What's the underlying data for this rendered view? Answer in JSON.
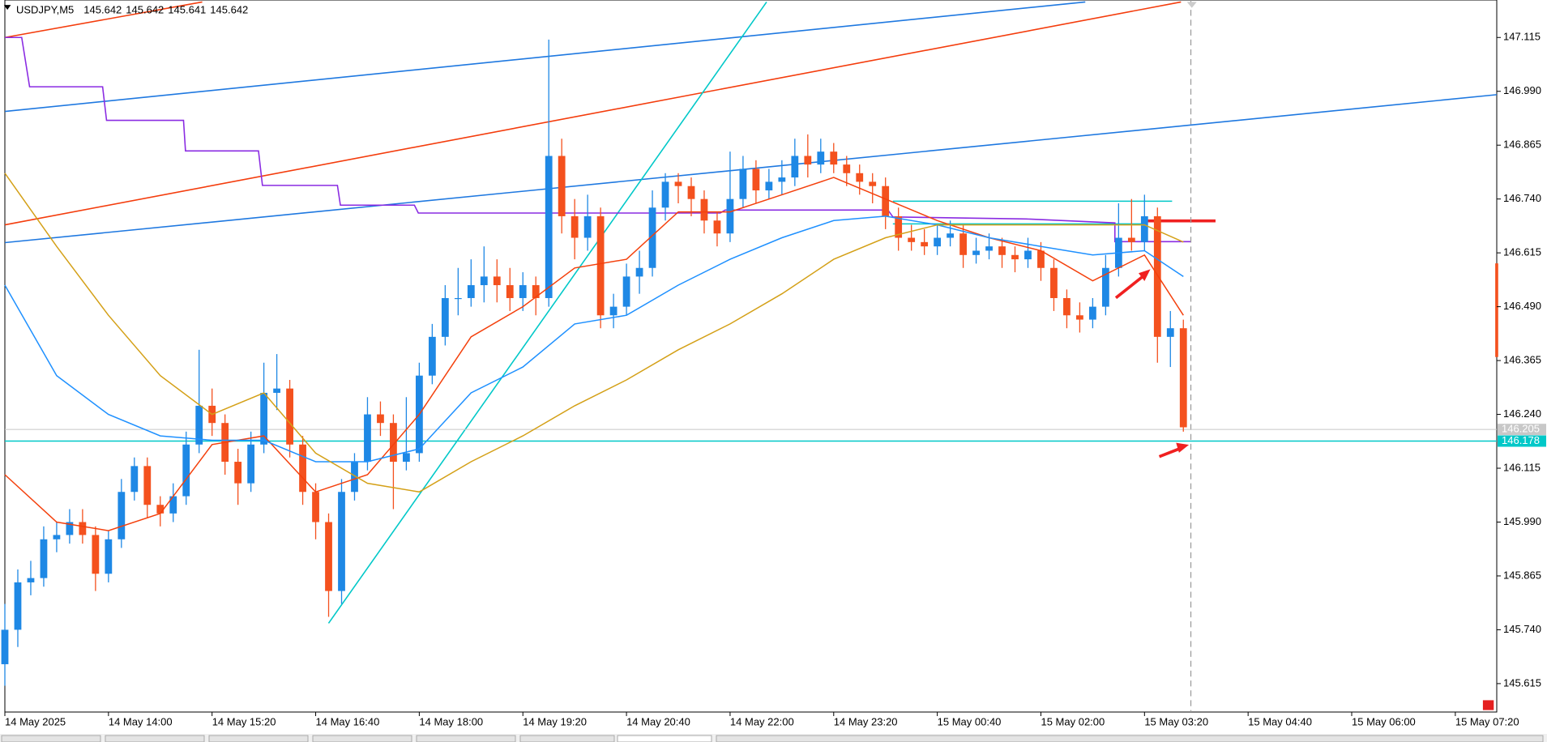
{
  "chart_data": {
    "type": "candlestick",
    "symbol": "USDJPY,M5",
    "header_ohlc": [
      145.642,
      145.642,
      145.641,
      145.642
    ],
    "up_color": "#1e88e5",
    "down_color": "#f4511e",
    "ylim": [
      145.549,
      147.202
    ],
    "yticks": [
      147.115,
      {
        "value": 146.99,
        "label": "146.990"
      },
      146.865,
      {
        "value": 146.74,
        "label": "146.740"
      },
      146.615,
      {
        "value": 146.49,
        "label": "146.490"
      },
      146.365,
      {
        "value": 146.24,
        "label": "146.240"
      },
      146.115,
      {
        "value": 145.99,
        "label": "145.990"
      },
      145.865,
      {
        "value": 145.74,
        "label": "145.740"
      },
      145.615
    ],
    "xlim": [
      0,
      115.2
    ],
    "xticks": [
      {
        "value": 0,
        "label": "14 May 2025"
      },
      {
        "value": 8,
        "label": "14 May 14:00"
      },
      {
        "value": 16,
        "label": "14 May 15:20"
      },
      {
        "value": 24,
        "label": "14 May 16:40"
      },
      {
        "value": 32,
        "label": "14 May 18:00"
      },
      {
        "value": 40,
        "label": "14 May 19:20"
      },
      {
        "value": 48,
        "label": "14 May 20:40"
      },
      {
        "value": 56,
        "label": "14 May 22:00"
      },
      {
        "value": 64,
        "label": "14 May 23:20"
      },
      {
        "value": 72,
        "label": "15 May 00:40"
      },
      {
        "value": 80,
        "label": "15 May 02:00"
      },
      {
        "value": 88,
        "label": "15 May 03:20"
      },
      {
        "value": 96,
        "label": "15 May 04:40"
      },
      {
        "value": 104,
        "label": "15 May 06:00"
      },
      {
        "value": 112,
        "label": "15 May 07:20"
      }
    ],
    "open": [
      145.66,
      145.74,
      145.85,
      145.86,
      145.95,
      145.96,
      145.99,
      145.96,
      145.87,
      145.95,
      146.06,
      146.12,
      146.03,
      146.01,
      146.05,
      146.17,
      146.26,
      146.22,
      146.13,
      146.08,
      146.17,
      146.29,
      146.3,
      146.17,
      146.06,
      145.99,
      145.83,
      146.06,
      146.13,
      146.24,
      146.22,
      146.13,
      146.15,
      146.33,
      146.42,
      146.51,
      146.51,
      146.54,
      146.56,
      146.54,
      146.51,
      146.54,
      146.51,
      146.84,
      146.7,
      146.65,
      146.7,
      146.47,
      146.49,
      146.56,
      146.58,
      146.72,
      146.78,
      146.77,
      146.74,
      146.69,
      146.66,
      146.74,
      146.81,
      146.76,
      146.78,
      146.79,
      146.84,
      146.82,
      146.85,
      146.82,
      146.8,
      146.78,
      146.77,
      146.7,
      146.65,
      146.64,
      146.63,
      146.65,
      146.66,
      146.61,
      146.62,
      146.63,
      146.61,
      146.6,
      146.62,
      146.58,
      146.51,
      146.47,
      146.46,
      146.49,
      146.58,
      146.65,
      146.64,
      146.7,
      146.42,
      146.44
    ],
    "high": [
      145.8,
      145.88,
      145.9,
      145.98,
      145.99,
      146.02,
      146.02,
      145.98,
      145.97,
      146.09,
      146.14,
      146.14,
      146.05,
      146.08,
      146.2,
      146.39,
      146.3,
      146.24,
      146.16,
      146.2,
      146.36,
      146.38,
      146.32,
      146.19,
      146.08,
      146.01,
      146.09,
      146.15,
      146.28,
      146.27,
      146.24,
      146.28,
      146.36,
      146.45,
      146.54,
      146.58,
      146.6,
      146.63,
      146.6,
      146.58,
      146.57,
      146.56,
      147.11,
      146.88,
      146.74,
      146.75,
      146.72,
      146.52,
      146.59,
      146.62,
      146.76,
      146.8,
      146.8,
      146.79,
      146.76,
      146.71,
      146.85,
      146.84,
      146.83,
      146.81,
      146.83,
      146.88,
      146.89,
      146.88,
      146.87,
      146.84,
      146.82,
      146.8,
      146.79,
      146.72,
      146.68,
      146.67,
      146.68,
      146.69,
      146.68,
      146.65,
      146.66,
      146.65,
      146.63,
      146.65,
      146.64,
      146.6,
      146.53,
      146.5,
      146.51,
      146.61,
      146.73,
      146.74,
      146.75,
      146.72,
      146.48,
      146.46
    ],
    "low": [
      145.61,
      145.7,
      145.82,
      145.84,
      145.92,
      145.94,
      145.94,
      145.83,
      145.85,
      145.93,
      146.04,
      146.0,
      145.98,
      145.99,
      146.03,
      146.15,
      146.19,
      146.1,
      146.03,
      146.06,
      146.15,
      146.25,
      146.14,
      146.03,
      145.95,
      145.77,
      145.8,
      146.04,
      146.11,
      146.19,
      146.02,
      146.11,
      146.13,
      146.31,
      146.4,
      146.47,
      146.49,
      146.5,
      146.5,
      146.48,
      146.48,
      146.47,
      146.49,
      146.66,
      146.6,
      146.62,
      146.44,
      146.44,
      146.47,
      146.52,
      146.56,
      146.69,
      146.73,
      146.7,
      146.66,
      146.63,
      146.64,
      146.72,
      146.73,
      146.74,
      146.75,
      146.77,
      146.79,
      146.8,
      146.8,
      146.77,
      146.75,
      146.73,
      146.67,
      146.62,
      146.62,
      146.61,
      146.61,
      146.63,
      146.58,
      146.59,
      146.6,
      146.58,
      146.57,
      146.58,
      146.55,
      146.48,
      146.44,
      146.43,
      146.44,
      146.47,
      146.56,
      146.62,
      146.62,
      146.36,
      146.35,
      146.2
    ],
    "close": [
      145.74,
      145.85,
      145.86,
      145.95,
      145.96,
      145.99,
      145.96,
      145.87,
      145.95,
      146.06,
      146.12,
      146.03,
      146.01,
      146.05,
      146.17,
      146.26,
      146.22,
      146.13,
      146.08,
      146.17,
      146.29,
      146.3,
      146.17,
      146.06,
      145.99,
      145.83,
      146.06,
      146.13,
      146.24,
      146.22,
      146.13,
      146.15,
      146.33,
      146.42,
      146.51,
      146.51,
      146.54,
      146.56,
      146.54,
      146.51,
      146.54,
      146.51,
      146.84,
      146.7,
      146.65,
      146.7,
      146.47,
      146.49,
      146.56,
      146.58,
      146.72,
      146.78,
      146.77,
      146.74,
      146.69,
      146.66,
      146.74,
      146.81,
      146.76,
      146.78,
      146.79,
      146.84,
      146.82,
      146.85,
      146.82,
      146.8,
      146.78,
      146.77,
      146.7,
      146.65,
      146.64,
      146.63,
      146.65,
      146.66,
      146.61,
      146.62,
      146.63,
      146.61,
      146.6,
      146.62,
      146.58,
      146.51,
      146.47,
      146.46,
      146.49,
      146.58,
      146.65,
      146.64,
      146.7,
      146.42,
      146.44,
      146.21
    ],
    "series": [
      {
        "color": "#f4400c",
        "x": [
          0,
          4,
          8,
          12,
          16,
          20,
          24,
          28,
          32,
          36,
          40,
          44,
          48,
          52,
          56,
          60,
          64,
          68,
          72,
          76,
          80,
          84,
          88,
          91
        ],
        "values": [
          146.1,
          145.99,
          145.97,
          146.01,
          146.17,
          146.19,
          146.06,
          146.1,
          146.24,
          146.42,
          146.49,
          146.58,
          146.6,
          146.71,
          146.71,
          146.75,
          146.79,
          146.74,
          146.69,
          146.65,
          146.62,
          146.55,
          146.61,
          146.47
        ]
      },
      {
        "color": "#1e90ff",
        "x": [
          0,
          4,
          8,
          12,
          16,
          20,
          24,
          28,
          32,
          36,
          40,
          44,
          48,
          52,
          56,
          60,
          64,
          68,
          72,
          76,
          80,
          84,
          88,
          91
        ],
        "values": [
          146.54,
          146.33,
          146.24,
          146.19,
          146.18,
          146.18,
          146.13,
          146.13,
          146.16,
          146.29,
          146.35,
          146.45,
          146.47,
          146.54,
          146.6,
          146.65,
          146.69,
          146.7,
          146.68,
          146.65,
          146.63,
          146.61,
          146.62,
          146.56
        ]
      },
      {
        "color": "#d4a017",
        "x": [
          0,
          4,
          8,
          12,
          16,
          20,
          24,
          28,
          32,
          36,
          40,
          44,
          48,
          52,
          56,
          60,
          64,
          68,
          72,
          76,
          80,
          84,
          88,
          91
        ],
        "values": [
          146.8,
          146.63,
          146.47,
          146.33,
          146.24,
          146.29,
          146.15,
          146.08,
          146.06,
          146.13,
          146.19,
          146.26,
          146.32,
          146.39,
          146.45,
          146.52,
          146.6,
          146.65,
          146.68,
          146.68,
          146.68,
          146.68,
          146.68,
          146.64
        ]
      }
    ],
    "bid_price": 146.205,
    "level_price": 146.178,
    "level_color": "#00c8c8"
  }
}
